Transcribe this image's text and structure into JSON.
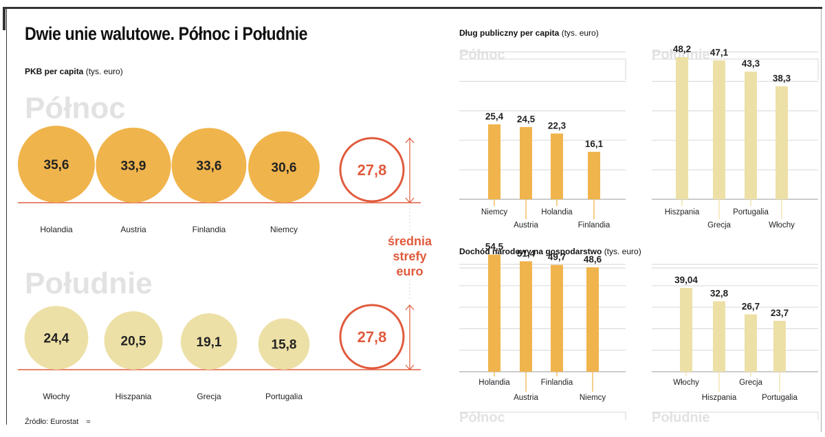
{
  "title": "Dwie unie walutowe. Północ i Południe",
  "source": "Źródło: Eurostat",
  "source_mark": "≈",
  "colors": {
    "north": "#f0b44c",
    "south": "#ede0a6",
    "avg": "#e05a3c",
    "ghost": "#e2e2e2",
    "grid": "#d6d6d6"
  },
  "charts": {
    "pkb": {
      "title": "PKB per capita",
      "unit": "(tys. euro)",
      "north_label": "Północ",
      "south_label": "Południe",
      "avg_value": "27,8",
      "avg_label": [
        "średnia",
        "strefy",
        "euro"
      ]
    },
    "dlug": {
      "title": "Dług publiczny per capita",
      "unit": "(tys. euro)",
      "north_label": "Północ",
      "south_label": "Południe"
    },
    "dochod": {
      "title": "Dochód narodowy na gospodarstwo",
      "unit": "(tys. euro)",
      "north_label": "Północ",
      "south_label": "Południe"
    }
  },
  "chart_data": [
    {
      "type": "bubble",
      "title": "PKB per capita",
      "unit": "(tys. euro)",
      "reference": {
        "value": 27.8,
        "label": "27,8"
      },
      "series": [
        {
          "name": "Północ",
          "categories": [
            "Holandia",
            "Austria",
            "Finlandia",
            "Niemcy"
          ],
          "values": [
            35.6,
            33.9,
            33.6,
            30.6
          ],
          "labels": [
            "35,6",
            "33,9",
            "33,6",
            "30,6"
          ]
        },
        {
          "name": "Południe",
          "categories": [
            "Włochy",
            "Hiszpania",
            "Grecja",
            "Portugalia"
          ],
          "values": [
            24.4,
            20.5,
            19.1,
            15.8
          ],
          "labels": [
            "24,4",
            "20,5",
            "19,1",
            "15,8"
          ]
        }
      ]
    },
    {
      "type": "bar",
      "title": "Dług publiczny per capita",
      "unit": "(tys. euro)",
      "ylim": [
        0,
        55
      ],
      "series": [
        {
          "name": "Północ",
          "categories": [
            "Niemcy",
            "Austria",
            "Holandia",
            "Finlandia"
          ],
          "values": [
            25.4,
            24.5,
            22.3,
            16.1
          ],
          "labels": [
            "25,4",
            "24,5",
            "22,3",
            "16,1"
          ]
        },
        {
          "name": "Południe",
          "categories": [
            "Hiszpania",
            "Grecja",
            "Portugalia",
            "Włochy"
          ],
          "values": [
            48.2,
            47.1,
            43.3,
            38.3
          ],
          "labels": [
            "48,2",
            "47,1",
            "43,3",
            "38,3"
          ]
        }
      ]
    },
    {
      "type": "bar",
      "title": "Dochód narodowy na gospodarstwo",
      "unit": "(tys. euro)",
      "ylim": [
        0,
        55
      ],
      "series": [
        {
          "name": "Północ",
          "categories": [
            "Holandia",
            "Austria",
            "Finlandia",
            "Niemcy"
          ],
          "values": [
            54.5,
            51.4,
            49.7,
            48.6
          ],
          "labels": [
            "54,5",
            "51,4",
            "49,7",
            "48,6"
          ]
        },
        {
          "name": "Południe",
          "categories": [
            "Włochy",
            "Hiszpania",
            "Grecja",
            "Portugalia"
          ],
          "values": [
            39.04,
            32.8,
            26.7,
            23.7
          ],
          "labels": [
            "39,04",
            "32,8",
            "26,7",
            "23,7"
          ]
        }
      ]
    }
  ]
}
